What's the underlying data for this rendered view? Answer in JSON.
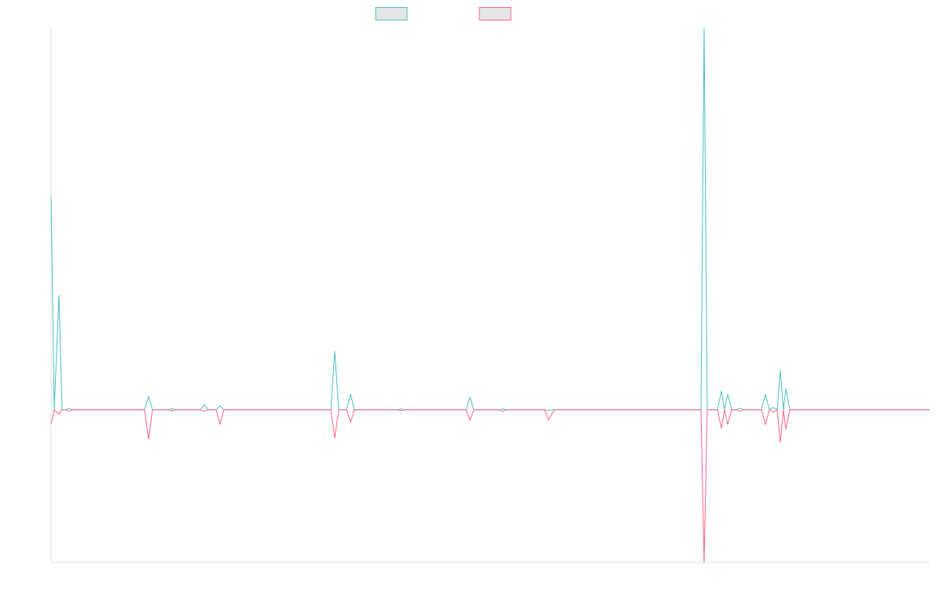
{
  "chart_data": {
    "type": "line",
    "legend": "top",
    "x": [
      0,
      4,
      10,
      14,
      19,
      23,
      27,
      119,
      124,
      129,
      149,
      154,
      159,
      190,
      195,
      200,
      210,
      215,
      220,
      356,
      361,
      366,
      376,
      381,
      386,
      440,
      445,
      450,
      528,
      533,
      538,
      570,
      575,
      580,
      628,
      633,
      638,
      641,
      827,
      831,
      835,
      848,
      853,
      857,
      861,
      866,
      872,
      877,
      881,
      904,
      909,
      914,
      919,
      924,
      928,
      932,
      935,
      940,
      1118
    ],
    "series": [
      {
        "color": "#4bc0c0",
        "values": [
          56,
          0,
          30,
          0,
          0,
          0.4,
          0,
          0,
          3.5,
          0,
          0,
          0.3,
          0,
          0,
          1.4,
          0,
          0,
          1,
          0,
          0,
          15.4,
          0,
          0,
          4.1,
          0,
          0,
          0.2,
          0,
          0,
          3.3,
          0,
          0,
          0.2,
          0,
          0,
          -0.2,
          0,
          0,
          0,
          100,
          0,
          0,
          4.9,
          0,
          4.1,
          0,
          0,
          0.4,
          0,
          0,
          4.1,
          0,
          0.6,
          0,
          10.3,
          0,
          5.6,
          0,
          0
        ]
      },
      {
        "color": "#ff6384",
        "values": [
          -3.7,
          0,
          -1.2,
          0,
          0,
          -0.4,
          0,
          0,
          -7.8,
          0,
          0,
          -0.3,
          0,
          0,
          -0.4,
          0,
          0,
          -3.7,
          0,
          0,
          -7.4,
          0,
          0,
          -3.3,
          0,
          0,
          -0.2,
          0,
          0,
          -2.7,
          0,
          0,
          -0.4,
          0,
          0,
          -2.7,
          -0.8,
          0,
          0,
          -40,
          0,
          0,
          -4.9,
          0,
          -3.9,
          0,
          0,
          -0.4,
          0,
          0,
          -3.9,
          0,
          -0.6,
          0,
          -8.6,
          0,
          -5.1,
          0,
          0
        ]
      }
    ],
    "xlim": [
      0,
      1118
    ],
    "ylim": [
      -40,
      100
    ]
  }
}
